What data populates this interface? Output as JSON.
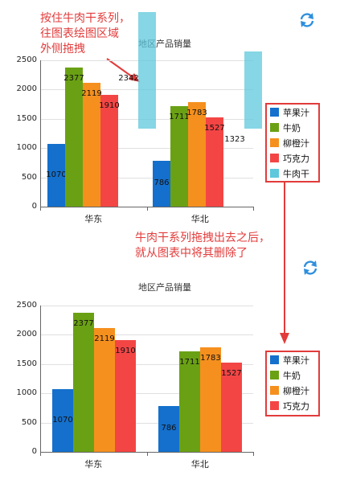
{
  "top_annotation": "按住牛肉干系列，\n往图表绘图区域\n外侧拖拽",
  "mid_annotation": "牛肉干系列拖拽出去之后，\n就从图表中将其删除了",
  "colors": {
    "apple": "#1470cc",
    "milk": "#6aa114",
    "orange": "#f5901e",
    "chocolate": "#f44545",
    "jerky": "#5ec8dc",
    "annotation": "#e23b3b",
    "refresh_icon": "#2f8fdd"
  },
  "refresh_icon": "refresh-icon",
  "chart_data": [
    {
      "type": "bar",
      "title": "地区产品销量",
      "categories": [
        "华东",
        "华北"
      ],
      "ylim": [
        0,
        2500
      ],
      "yticks": [
        "0",
        "500",
        "1000",
        "1500",
        "2000",
        "2500"
      ],
      "grid": true,
      "legend_position": "right",
      "dragged_series_outside": "牛肉干",
      "series": [
        {
          "name": "苹果汁",
          "values": [
            1070,
            786
          ],
          "labels": [
            "1070",
            "786"
          ]
        },
        {
          "name": "牛奶",
          "values": [
            2377,
            1711
          ],
          "labels": [
            "2377",
            "1711"
          ]
        },
        {
          "name": "柳橙汁",
          "values": [
            2119,
            1783
          ],
          "labels": [
            "2119",
            "1783"
          ]
        },
        {
          "name": "巧克力",
          "values": [
            1910,
            1527
          ],
          "labels": [
            "1910",
            "1527"
          ]
        },
        {
          "name": "牛肉干",
          "values": [
            2342,
            1323
          ],
          "labels": [
            "2342",
            "1323"
          ]
        }
      ]
    },
    {
      "type": "bar",
      "title": "地区产品销量",
      "categories": [
        "华东",
        "华北"
      ],
      "ylim": [
        0,
        2500
      ],
      "yticks": [
        "0",
        "500",
        "1000",
        "1500",
        "2000",
        "2500"
      ],
      "grid": true,
      "legend_position": "right",
      "series": [
        {
          "name": "苹果汁",
          "values": [
            1070,
            786
          ],
          "labels": [
            "1070",
            "786"
          ]
        },
        {
          "name": "牛奶",
          "values": [
            2377,
            1711
          ],
          "labels": [
            "2377",
            "1711"
          ]
        },
        {
          "name": "柳橙汁",
          "values": [
            2119,
            1783
          ],
          "labels": [
            "2119",
            "1783"
          ]
        },
        {
          "name": "巧克力",
          "values": [
            1910,
            1527
          ],
          "labels": [
            "1910",
            "1527"
          ]
        }
      ]
    }
  ]
}
